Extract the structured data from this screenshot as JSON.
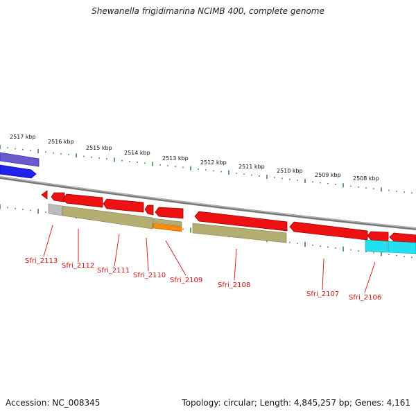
{
  "title": "Shewanella frigidimarina NCIMB 400, complete genome",
  "footer": {
    "accession": "Accession: NC_008345",
    "summary": "Topology: circular; Length: 4,845,257 bp; Genes: 4,161"
  },
  "colors": {
    "background": "#ffffff",
    "backbone": "#8a8a8a",
    "tick": "#1f7a1f",
    "gene_red": "#ee1111",
    "gene_blue": "#2222ee",
    "gene_purple": "#6a5acd",
    "gene_olive": "#b5ae72",
    "gene_orange": "#ff8c00",
    "gene_cyan": "#22e0f0",
    "gene_gray": "#bbbbbb",
    "label": "#cc1111",
    "leader": "#dd2222"
  },
  "axis": {
    "unit": "kbp",
    "kbp_labels": [
      "2517 kbp",
      "2516 kbp",
      "2515 kbp",
      "2514 kbp",
      "2513 kbp",
      "2512 kbp",
      "2511 kbp",
      "2510 kbp",
      "2509 kbp",
      "2508 kbp"
    ]
  },
  "genes": [
    {
      "label": "Sfri_2113"
    },
    {
      "label": "Sfri_2112"
    },
    {
      "label": "Sfri_2111"
    },
    {
      "label": "Sfri_2110"
    },
    {
      "label": "Sfri_2109"
    },
    {
      "label": "Sfri_2108"
    },
    {
      "label": "Sfri_2107"
    },
    {
      "label": "Sfri_2106"
    }
  ]
}
